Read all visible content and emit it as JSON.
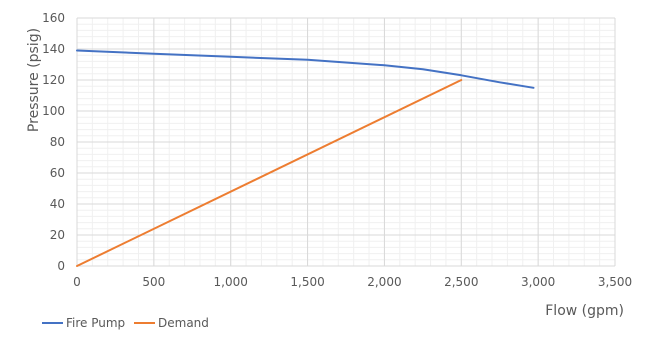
{
  "chart_data": {
    "type": "line",
    "title": "",
    "xlabel": "Flow (gpm)",
    "ylabel": "Pressure (psig)",
    "xlim": [
      0,
      3500
    ],
    "ylim": [
      0,
      160
    ],
    "x_ticks": [
      0,
      500,
      1000,
      1500,
      2000,
      2500,
      3000,
      3500
    ],
    "x_tick_labels": [
      "0",
      "500",
      "1,000",
      "1,500",
      "2,000",
      "2,500",
      "3,000",
      "3,500"
    ],
    "y_ticks": [
      0,
      20,
      40,
      60,
      80,
      100,
      120,
      140,
      160
    ],
    "y_tick_labels": [
      "0",
      "20",
      "40",
      "60",
      "80",
      "100",
      "120",
      "140",
      "160"
    ],
    "grid": true,
    "legend_position": "bottom-left",
    "series": [
      {
        "name": "Fire Pump",
        "color": "#4472C4",
        "points": [
          [
            0,
            139
          ],
          [
            500,
            137
          ],
          [
            1000,
            135
          ],
          [
            1500,
            133
          ],
          [
            2000,
            129.5
          ],
          [
            2250,
            127
          ],
          [
            2500,
            123
          ],
          [
            2750,
            118.5
          ],
          [
            2970,
            115
          ]
        ]
      },
      {
        "name": "Demand",
        "color": "#ED7D31",
        "points": [
          [
            0,
            0
          ],
          [
            2500,
            120
          ]
        ]
      }
    ]
  }
}
